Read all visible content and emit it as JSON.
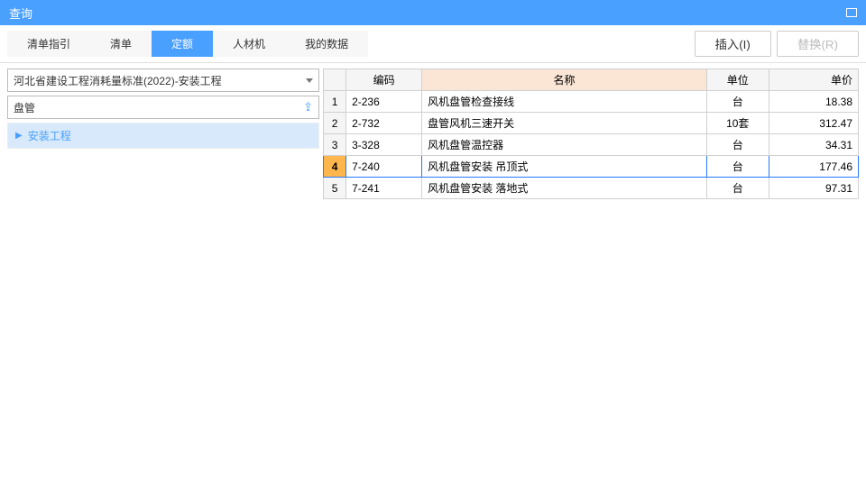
{
  "titlebar": {
    "title": "查询"
  },
  "tabs": [
    "清单指引",
    "清单",
    "定额",
    "人材机",
    "我的数据"
  ],
  "active_tab": 2,
  "buttons": {
    "insert": "插入(I)",
    "replace": "替换(R)"
  },
  "combo": {
    "value": "河北省建设工程消耗量标准(2022)-安装工程"
  },
  "search": {
    "value": "盘管"
  },
  "tree": {
    "item0": "安装工程"
  },
  "table": {
    "headers": {
      "code": "编码",
      "name": "名称",
      "unit": "单位",
      "price": "单价"
    },
    "rows": [
      {
        "n": "1",
        "code": "2-236",
        "name": "风机盘管检查接线",
        "unit": "台",
        "price": "18.38"
      },
      {
        "n": "2",
        "code": "2-732",
        "name": "盘管风机三速开关",
        "unit": "10套",
        "price": "312.47"
      },
      {
        "n": "3",
        "code": "3-328",
        "name": "风机盘管温控器",
        "unit": "台",
        "price": "34.31"
      },
      {
        "n": "4",
        "code": "7-240",
        "name": "风机盘管安装 吊顶式",
        "unit": "台",
        "price": "177.46"
      },
      {
        "n": "5",
        "code": "7-241",
        "name": "风机盘管安装 落地式",
        "unit": "台",
        "price": "97.31"
      }
    ],
    "selected": 3
  },
  "colors": {
    "primary": "#4aa0ff",
    "header_name_bg": "#fbe6d6",
    "sel_border": "#2779ff",
    "sel_rownum_bg": "#ffb64d"
  }
}
